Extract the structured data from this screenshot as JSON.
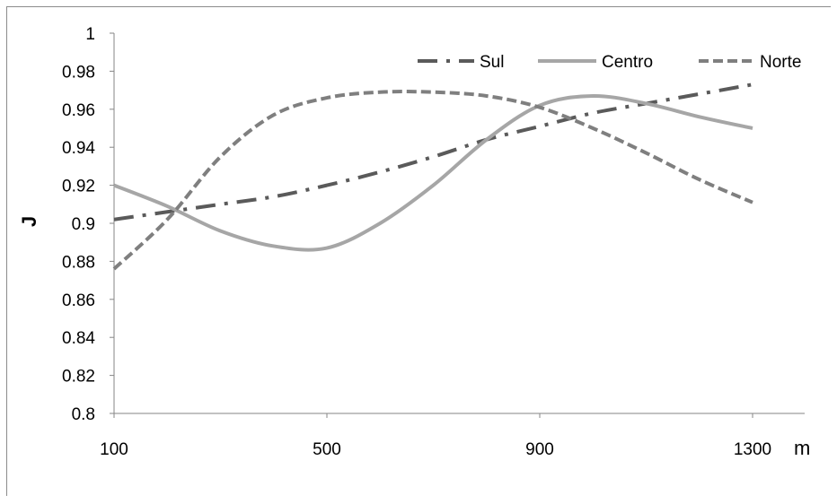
{
  "chart_data": {
    "type": "line",
    "title": "",
    "xlabel": "m",
    "ylabel": "J",
    "x": [
      100,
      200,
      300,
      400,
      500,
      600,
      700,
      800,
      900,
      1000,
      1100,
      1200,
      1300
    ],
    "xlim": [
      100,
      1300
    ],
    "ylim": [
      0.8,
      1.0
    ],
    "x_ticks": [
      "100",
      "500",
      "900",
      "1300"
    ],
    "y_ticks": [
      "0.8",
      "0.82",
      "0.84",
      "0.86",
      "0.88",
      "0.9",
      "0.92",
      "0.94",
      "0.96",
      "0.98",
      "1"
    ],
    "grid": false,
    "legend_position": "top-right",
    "series": [
      {
        "name": "Sul",
        "style": "dash-dot",
        "color": "#5a5a5a",
        "values": [
          0.902,
          0.906,
          0.91,
          0.914,
          0.92,
          0.927,
          0.935,
          0.944,
          0.951,
          0.958,
          0.963,
          0.968,
          0.973
        ]
      },
      {
        "name": "Centro",
        "style": "solid",
        "color": "#a6a6a6",
        "values": [
          0.92,
          0.909,
          0.896,
          0.888,
          0.887,
          0.9,
          0.92,
          0.944,
          0.962,
          0.967,
          0.963,
          0.956,
          0.95
        ]
      },
      {
        "name": "Norte",
        "style": "dashed",
        "color": "#7f7f7f",
        "values": [
          0.876,
          0.902,
          0.935,
          0.957,
          0.966,
          0.969,
          0.969,
          0.967,
          0.961,
          0.95,
          0.937,
          0.923,
          0.911
        ]
      }
    ]
  }
}
